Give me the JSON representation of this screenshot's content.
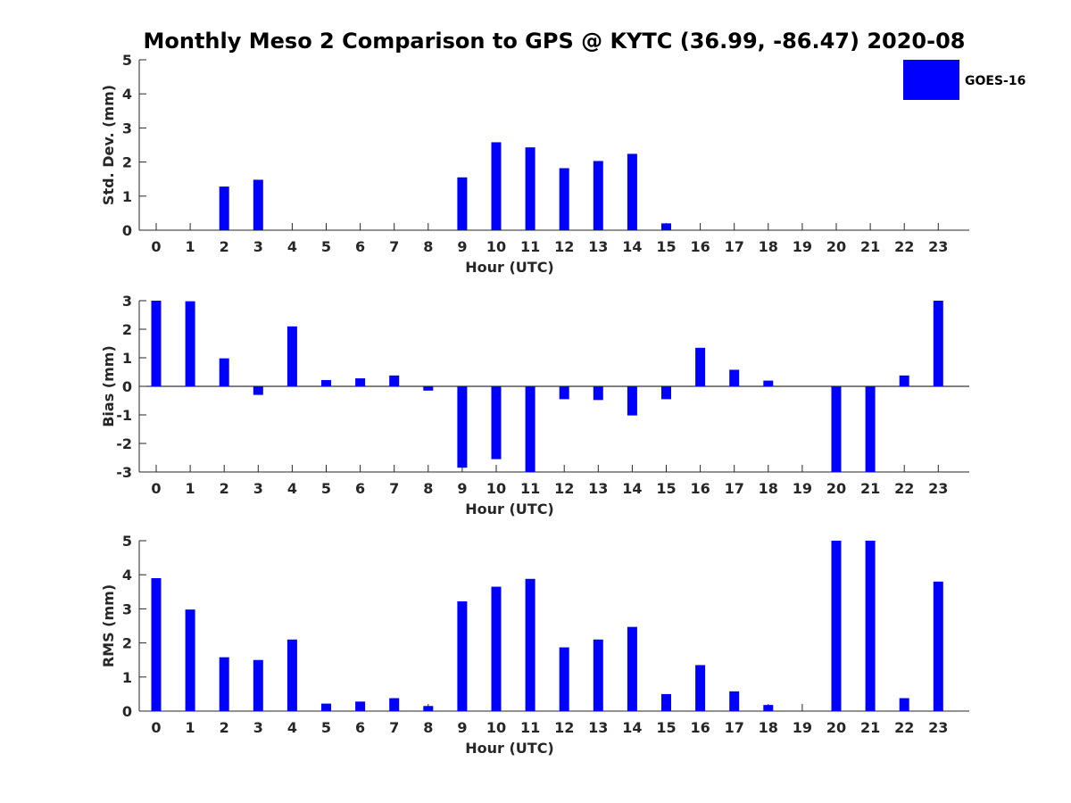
{
  "title": "Monthly Meso 2 Comparison to GPS @ KYTC (36.99, -86.47) 2020-08",
  "colors": {
    "bar": "#0000ff"
  },
  "legend": {
    "label": "GOES-16",
    "placement": "top-right"
  },
  "chart_data": [
    {
      "type": "bar",
      "ylabel": "Std. Dev. (mm)",
      "xlabel": "Hour (UTC)",
      "ylim": [
        0,
        5
      ],
      "yticks": [
        0,
        1,
        2,
        3,
        4,
        5
      ],
      "categories": [
        "0",
        "1",
        "2",
        "3",
        "4",
        "5",
        "6",
        "7",
        "8",
        "9",
        "10",
        "11",
        "12",
        "13",
        "14",
        "15",
        "16",
        "17",
        "18",
        "19",
        "20",
        "21",
        "22",
        "23"
      ],
      "series": [
        {
          "name": "GOES-16",
          "values": [
            0,
            0,
            1.28,
            1.48,
            0,
            0,
            0,
            0,
            0,
            1.55,
            2.58,
            2.43,
            1.82,
            2.03,
            2.24,
            0.2,
            0,
            0,
            0,
            0,
            0,
            0,
            0,
            0
          ]
        }
      ]
    },
    {
      "type": "bar",
      "ylabel": "Bias (mm)",
      "xlabel": "Hour (UTC)",
      "ylim": [
        -3,
        3
      ],
      "yticks": [
        -3,
        -2,
        -1,
        0,
        1,
        2,
        3
      ],
      "categories": [
        "0",
        "1",
        "2",
        "3",
        "4",
        "5",
        "6",
        "7",
        "8",
        "9",
        "10",
        "11",
        "12",
        "13",
        "14",
        "15",
        "16",
        "17",
        "18",
        "19",
        "20",
        "21",
        "22",
        "23"
      ],
      "series": [
        {
          "name": "GOES-16",
          "values": [
            3.0,
            2.98,
            0.98,
            -0.3,
            2.1,
            0.22,
            0.28,
            0.38,
            -0.15,
            -2.85,
            -2.55,
            -3.0,
            -0.45,
            -0.48,
            -1.02,
            -0.45,
            1.35,
            0.58,
            0.2,
            0,
            -3.0,
            -3.0,
            0.38,
            3.0
          ]
        }
      ]
    },
    {
      "type": "bar",
      "ylabel": "RMS (mm)",
      "xlabel": "Hour (UTC)",
      "ylim": [
        0,
        5
      ],
      "yticks": [
        0,
        1,
        2,
        3,
        4,
        5
      ],
      "categories": [
        "0",
        "1",
        "2",
        "3",
        "4",
        "5",
        "6",
        "7",
        "8",
        "9",
        "10",
        "11",
        "12",
        "13",
        "14",
        "15",
        "16",
        "17",
        "18",
        "19",
        "20",
        "21",
        "22",
        "23"
      ],
      "series": [
        {
          "name": "GOES-16",
          "values": [
            3.9,
            2.98,
            1.58,
            1.5,
            2.1,
            0.22,
            0.28,
            0.38,
            0.15,
            3.22,
            3.65,
            3.88,
            1.87,
            2.1,
            2.47,
            0.5,
            1.35,
            0.58,
            0.18,
            0,
            5.0,
            5.0,
            0.38,
            3.8
          ]
        }
      ]
    }
  ]
}
